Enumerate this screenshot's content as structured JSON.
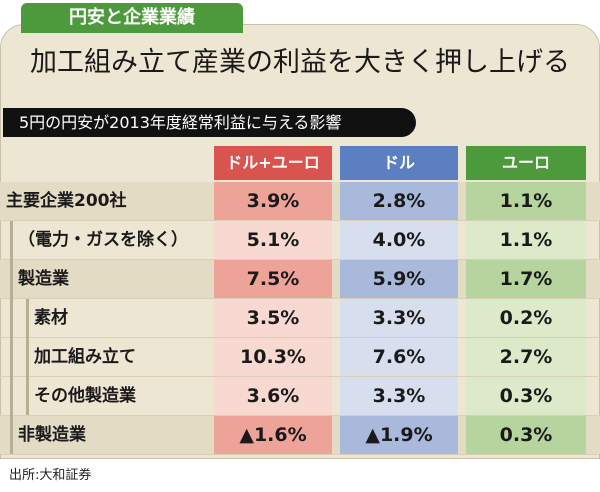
{
  "tag": "円安と企業業績",
  "headline": "加工組み立て産業の利益を大きく押し上げる",
  "subtitle": "5円の円安が2013年度経常利益に与える影響",
  "source": "出所:大和証券",
  "colors": {
    "header": [
      "#d9534f",
      "#5b7fc1",
      "#4d9a3c"
    ],
    "strong": [
      "#eea399",
      "#a9b9db",
      "#b6d49d"
    ],
    "light": [
      "#f8d9d2",
      "#d7dfee",
      "#dceac9"
    ]
  },
  "chart_data": {
    "type": "table",
    "title": "5円の円安が2013年度経常利益に与える影響",
    "columns": [
      "ドル+ユーロ",
      "ドル",
      "ユーロ"
    ],
    "rows": [
      {
        "label": "主要企業200社",
        "values": [
          "3.9%",
          "2.8%",
          "1.1%"
        ],
        "level": 0,
        "strong": true
      },
      {
        "label": "（電力・ガスを除く）",
        "values": [
          "5.1%",
          "4.0%",
          "1.1%"
        ],
        "level": 1,
        "strong": false
      },
      {
        "label": "製造業",
        "values": [
          "7.5%",
          "5.9%",
          "1.7%"
        ],
        "level": 1,
        "strong": true
      },
      {
        "label": "素材",
        "values": [
          "3.5%",
          "3.3%",
          "0.2%"
        ],
        "level": 2,
        "strong": false
      },
      {
        "label": "加工組み立て",
        "values": [
          "10.3%",
          "7.6%",
          "2.7%"
        ],
        "level": 2,
        "strong": false
      },
      {
        "label": "その他製造業",
        "values": [
          "3.6%",
          "3.3%",
          "0.3%"
        ],
        "level": 2,
        "strong": false
      },
      {
        "label": "非製造業",
        "values": [
          "▲1.6%",
          "▲1.9%",
          "0.3%"
        ],
        "level": 1,
        "strong": true
      }
    ]
  }
}
